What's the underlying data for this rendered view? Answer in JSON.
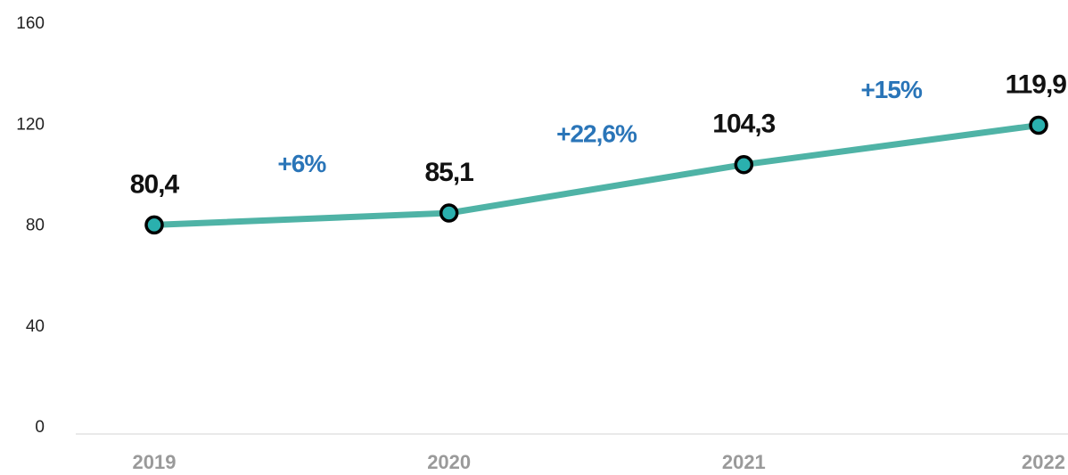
{
  "chart_data": {
    "type": "line",
    "categories": [
      "2019",
      "2020",
      "2021",
      "2022"
    ],
    "values": [
      80.4,
      85.1,
      104.3,
      119.9
    ],
    "value_labels": [
      "80,4",
      "85,1",
      "104,3",
      "119,9"
    ],
    "annotations": [
      "+6%",
      "+22,6%",
      "+15%"
    ],
    "color": "#4fb3a6",
    "marker_color": "#2ab0ae",
    "annotation_color": "#2a75b8",
    "ylim": [
      0,
      160
    ],
    "yticks": [
      0,
      40,
      80,
      120,
      160
    ],
    "grid": false
  }
}
